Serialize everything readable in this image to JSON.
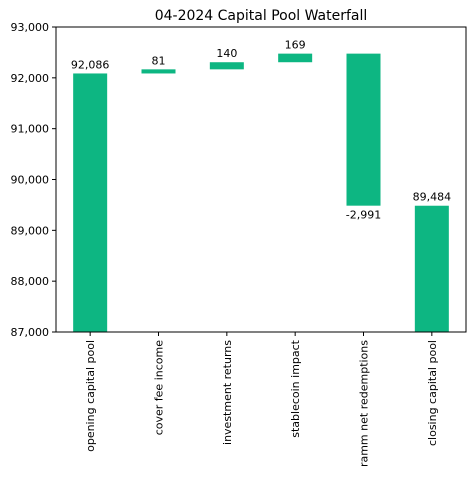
{
  "chart_data": {
    "type": "bar",
    "subtype": "waterfall",
    "title": "04-2024 Capital Pool Waterfall",
    "xlabel": "",
    "ylabel": "",
    "categories": [
      "opening capital pool",
      "cover fee income",
      "investment returns",
      "stablecoin impact",
      "ramm net redemptions",
      "closing capital pool"
    ],
    "values": [
      92086,
      81,
      140,
      169,
      -2991,
      89484
    ],
    "value_labels": [
      "92,086",
      "81",
      "140",
      "169",
      "-2,991",
      "89,484"
    ],
    "bar_kinds": [
      "total",
      "delta",
      "delta",
      "delta",
      "delta",
      "total"
    ],
    "ylim": [
      87000,
      93000
    ],
    "yticks": [
      87000,
      88000,
      89000,
      90000,
      91000,
      92000,
      93000
    ],
    "ytick_labels": [
      "87,000",
      "88,000",
      "89,000",
      "90,000",
      "91,000",
      "92,000",
      "93,000"
    ],
    "bar_color": "#0db682",
    "grid": false,
    "legend": "none"
  }
}
